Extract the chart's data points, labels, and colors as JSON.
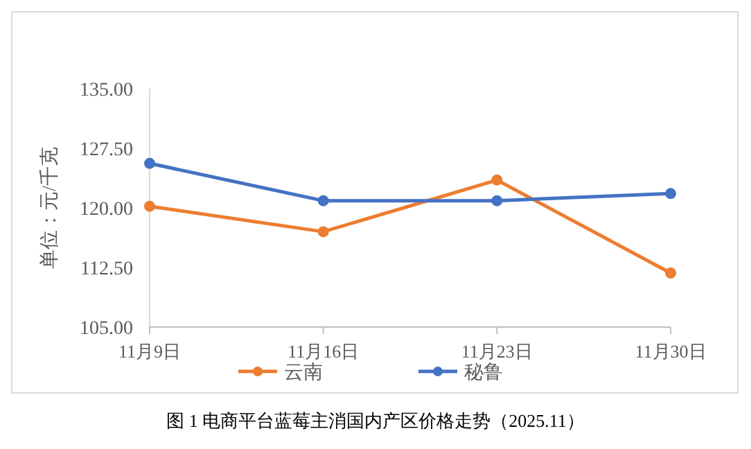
{
  "chart_data": {
    "type": "line",
    "ylabel": "单位：元/千克",
    "categories": [
      "11月9日",
      "11月16日",
      "11月23日",
      "11月30日"
    ],
    "series": [
      {
        "name": "云南",
        "color": "#ed7d31",
        "values": [
          120.2,
          117.0,
          123.5,
          111.8
        ]
      },
      {
        "name": "秘鲁",
        "color": "#4472c4",
        "values": [
          125.6,
          120.9,
          120.9,
          121.8
        ]
      }
    ],
    "ylim": [
      105,
      135
    ],
    "yticks": [
      {
        "value": 105,
        "label": "105.00"
      },
      {
        "value": 112.5,
        "label": "112.50"
      },
      {
        "value": 120,
        "label": "120.00"
      },
      {
        "value": 127.5,
        "label": "127.50"
      },
      {
        "value": 135,
        "label": "135.00"
      }
    ],
    "grid": false,
    "legend": "bottom",
    "marker": "circle",
    "line_style": "solid",
    "annotations": [
      "图 1  电商平台蓝莓主消国内产区价格走势（2025.11）"
    ]
  }
}
